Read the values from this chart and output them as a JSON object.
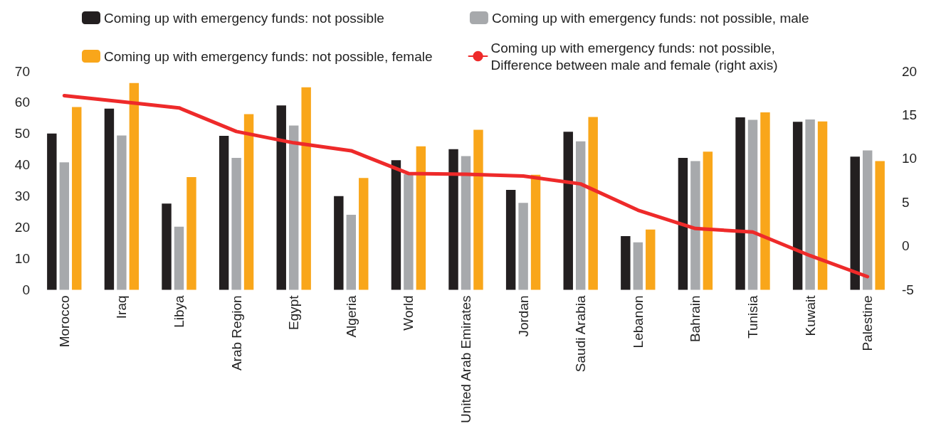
{
  "chart_data": {
    "type": "bar",
    "categories": [
      "Morocco",
      "Iraq",
      "Libya",
      "Arab Region",
      "Egypt",
      "Algeria",
      "World",
      "United Arab Emirates",
      "Jordan",
      "Saudi Arabia",
      "Lebanon",
      "Bahrain",
      "Tunisia",
      "Kuwait",
      "Palestine"
    ],
    "series": [
      {
        "name": "Coming up with emergency funds: not possible",
        "color": "#231f20",
        "values": [
          50,
          58,
          27.6,
          49.3,
          59,
          30,
          41.5,
          45,
          32,
          50.6,
          17.2,
          42.2,
          55.2,
          53.8,
          42.6
        ]
      },
      {
        "name": "Coming up with emergency funds: not possible, male",
        "color": "#a7a9ac",
        "values": [
          40.8,
          49.4,
          20.2,
          42.2,
          52.6,
          24,
          37,
          42.8,
          27.8,
          47.5,
          15.2,
          41.2,
          54.4,
          54.5,
          44.6
        ]
      },
      {
        "name": "Coming up with emergency funds: not possible, female",
        "color": "#f9a61a",
        "values": [
          58.5,
          66.2,
          36.1,
          56.2,
          64.8,
          35.8,
          45.9,
          51.2,
          36.8,
          55.3,
          19.3,
          44.2,
          56.8,
          53.9,
          41.2
        ]
      },
      {
        "name": "Coming up with emergency funds: not possible,\nDifference between male and female (right axis)",
        "type": "line",
        "axis": "y2",
        "color": "#ee2a2a",
        "values": [
          17.2,
          16.5,
          15.8,
          13.1,
          11.8,
          10.9,
          8.3,
          8.2,
          8,
          7.1,
          4.1,
          2,
          1.6,
          -1.1,
          -3.5
        ]
      }
    ],
    "ylim": [
      0,
      70
    ],
    "yticks": [
      0,
      10,
      20,
      30,
      40,
      50,
      60,
      70
    ],
    "y2lim": [
      -5,
      20
    ],
    "y2ticks": [
      -5,
      0,
      5,
      10,
      15,
      20
    ],
    "grid": false,
    "legend": "top",
    "marker": "none",
    "line_style": "solid"
  }
}
